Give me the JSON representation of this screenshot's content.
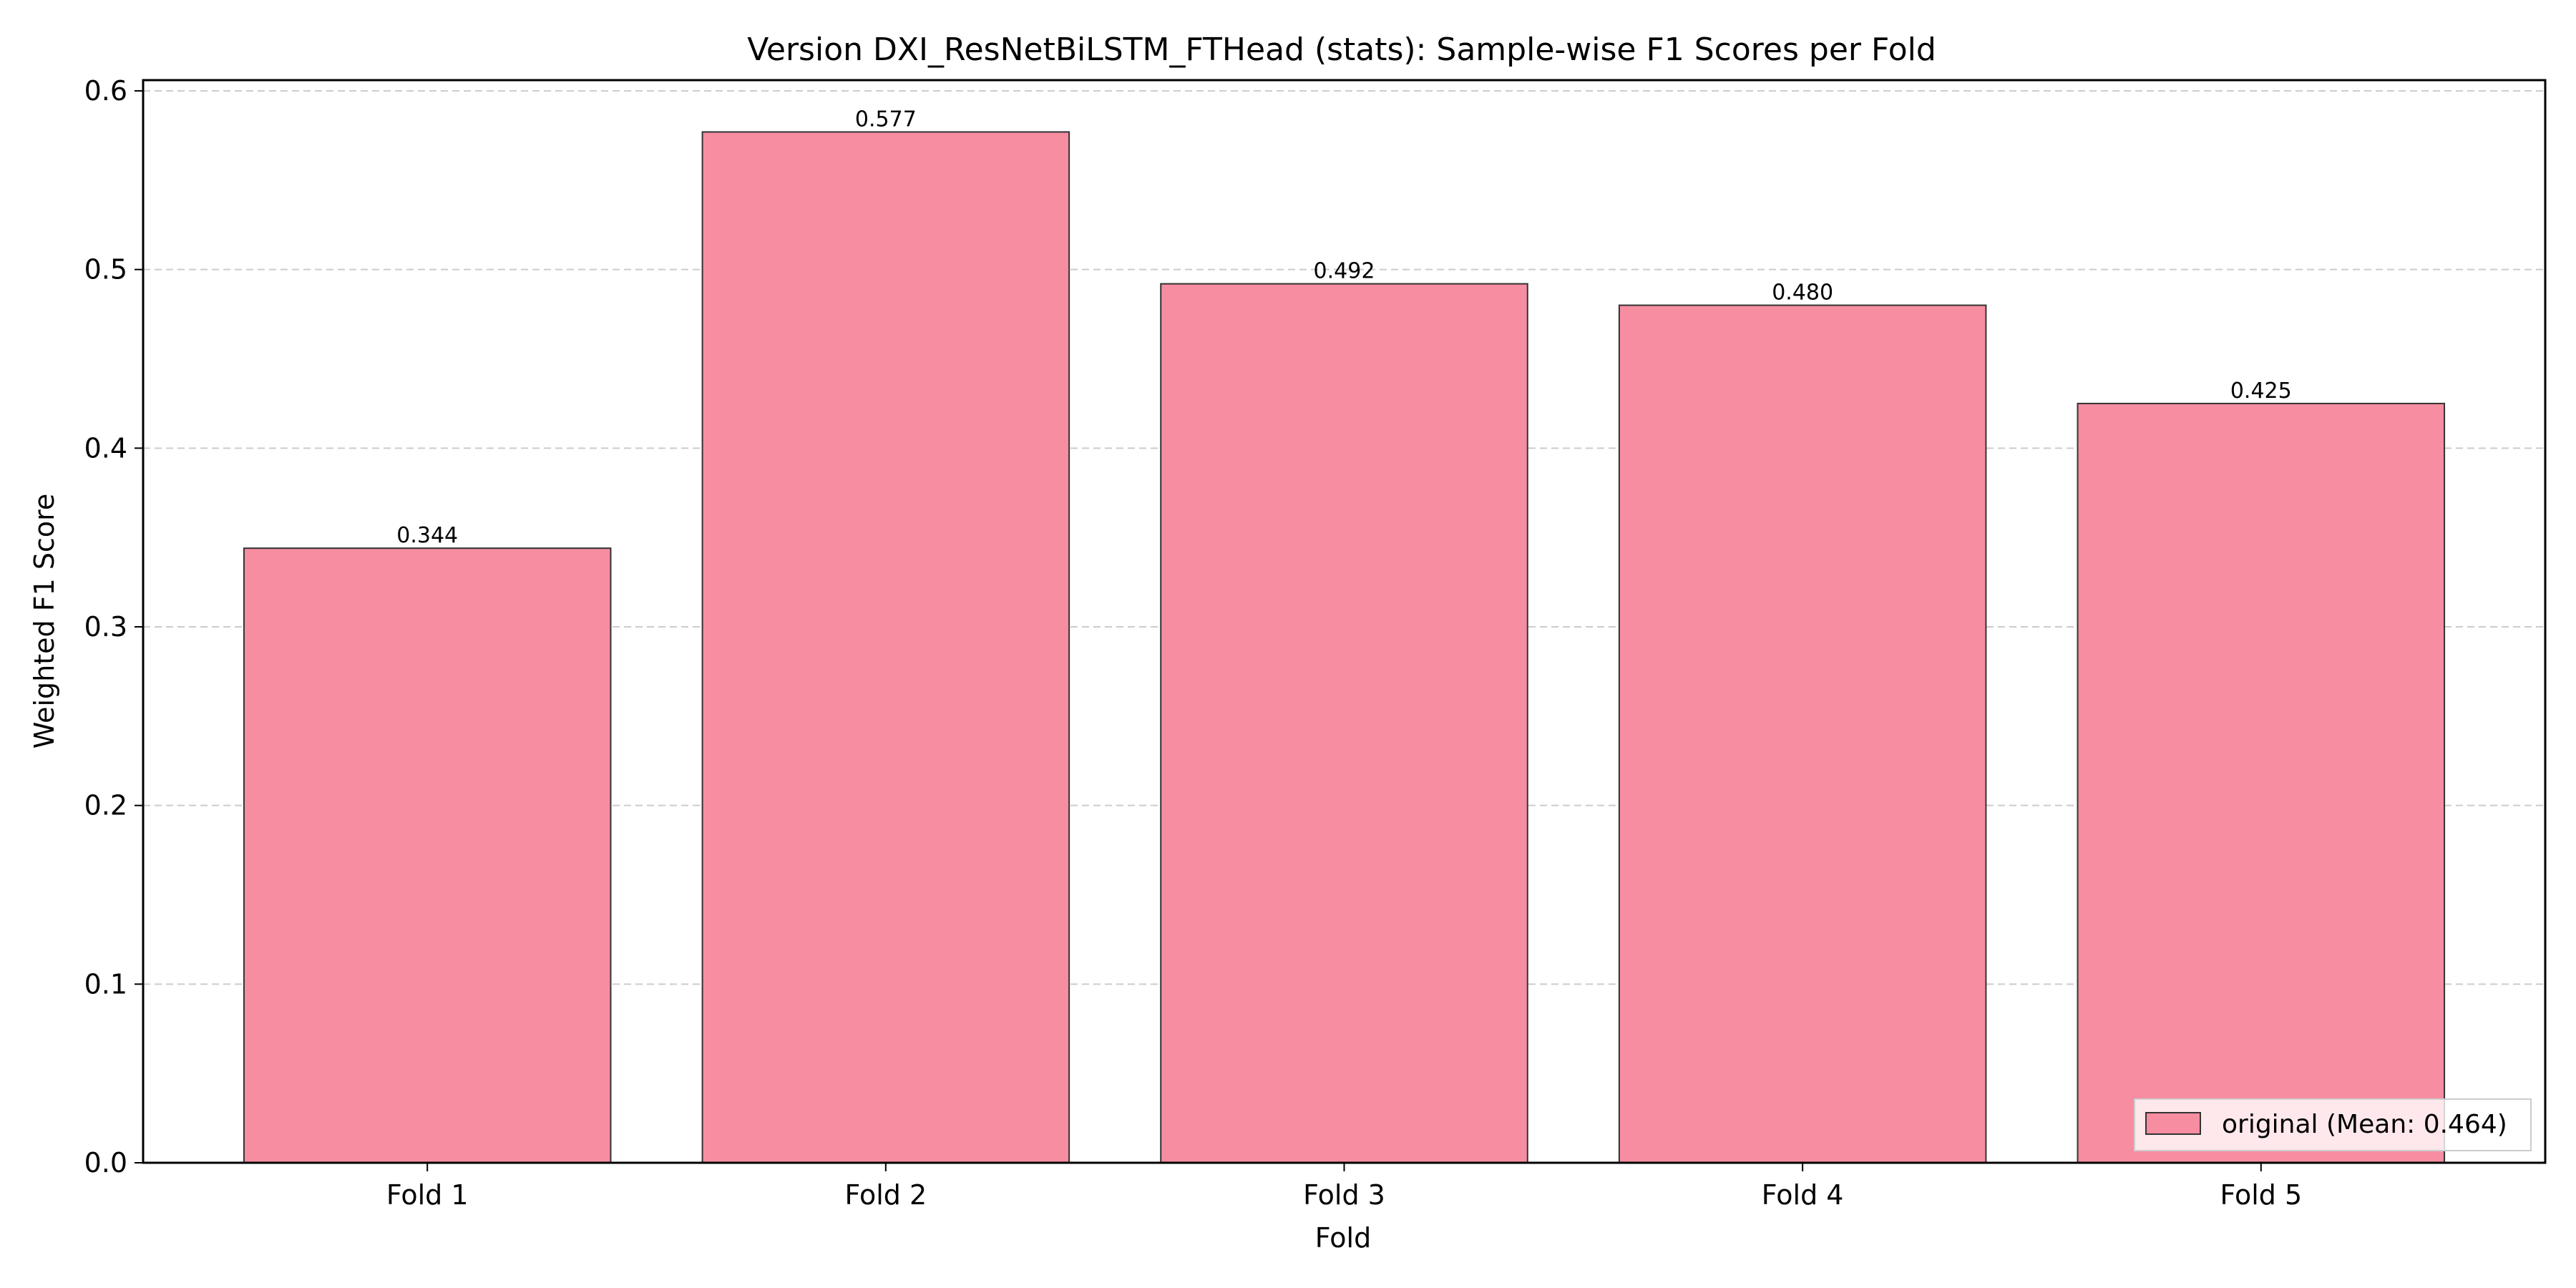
{
  "chart_data": {
    "type": "bar",
    "title": "Version DXI_ResNetBiLSTM_FTHead (stats): Sample-wise F1 Scores per Fold",
    "xlabel": "Fold",
    "ylabel": "Weighted F1 Score",
    "categories": [
      "Fold 1",
      "Fold 2",
      "Fold 3",
      "Fold 4",
      "Fold 5"
    ],
    "series": [
      {
        "name": "original (Mean: 0.464)",
        "values": [
          0.344,
          0.577,
          0.492,
          0.48,
          0.425
        ],
        "value_labels": [
          "0.344",
          "0.577",
          "0.492",
          "0.480",
          "0.425"
        ],
        "color": "#f78da0",
        "edge_color": "#333333"
      }
    ],
    "ylim": [
      0,
      0.606
    ],
    "yticks": [
      0.0,
      0.1,
      0.2,
      0.3,
      0.4,
      0.5,
      0.6
    ],
    "ytick_labels": [
      "0.0",
      "0.1",
      "0.2",
      "0.3",
      "0.4",
      "0.5",
      "0.6"
    ],
    "grid": {
      "axis": "y",
      "style": "dashed",
      "color": "#cccccc"
    },
    "legend": {
      "position": "lower-right"
    }
  }
}
